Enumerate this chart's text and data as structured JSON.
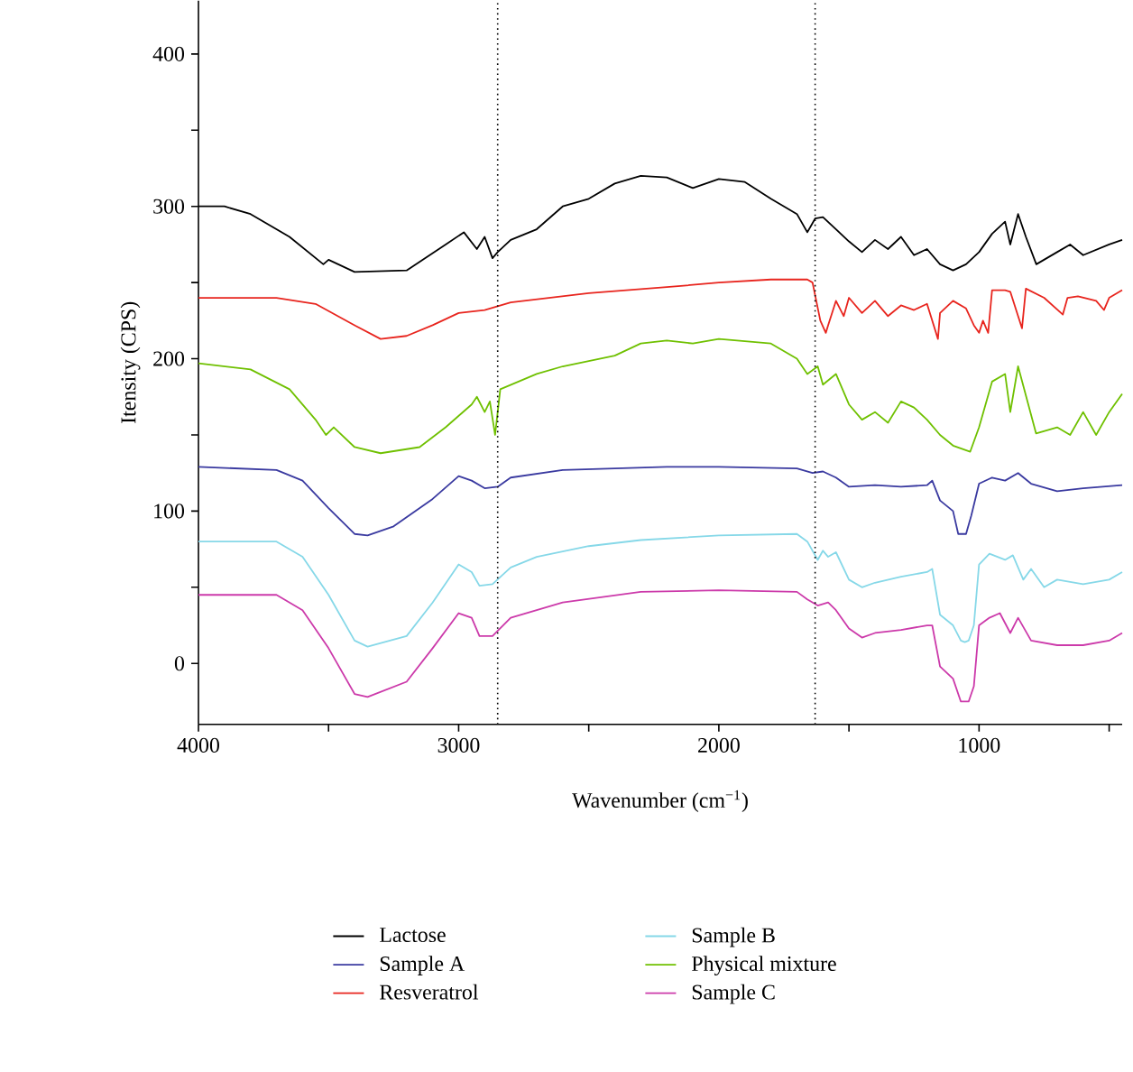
{
  "chart_data": {
    "type": "line",
    "xlabel": "Wavenumber (cm$^{−1}$)",
    "ylabel": "Itensity (CPS)",
    "xlim": [
      4000,
      450
    ],
    "ylim": [
      -40,
      435
    ],
    "xticks": [
      4000,
      {
        "value": 3500,
        "label": null
      },
      3000,
      {
        "value": 2500,
        "label": null
      },
      2000,
      {
        "value": 1500,
        "label": null
      },
      1000,
      {
        "value": 500,
        "label": null
      }
    ],
    "yticks": [
      0,
      {
        "value": 50,
        "label": null
      },
      100,
      {
        "value": 150,
        "label": null
      },
      200,
      {
        "value": 250,
        "label": null
      },
      300,
      {
        "value": 350,
        "label": null
      },
      400
    ],
    "legend": "bottom",
    "marker": "none",
    "line_style": "solid",
    "ref_lines": [
      {
        "axis": "x",
        "value": 2850,
        "color": "#000000",
        "line_style": "dotted"
      },
      {
        "axis": "x",
        "value": 1630,
        "color": "#000000",
        "line_style": "dotted"
      }
    ],
    "series": [
      {
        "name": "Lactose",
        "color": "#000000",
        "x": [
          4000,
          3900,
          3800,
          3650,
          3520,
          3500,
          3400,
          3200,
          3050,
          2980,
          2930,
          2900,
          2870,
          2850,
          2800,
          2700,
          2600,
          2500,
          2400,
          2300,
          2200,
          2100,
          2000,
          1900,
          1800,
          1700,
          1660,
          1630,
          1600,
          1500,
          1450,
          1400,
          1350,
          1300,
          1250,
          1200,
          1150,
          1100,
          1050,
          1000,
          950,
          900,
          880,
          850,
          820,
          780,
          700,
          650,
          600,
          500,
          450
        ],
        "values": [
          300,
          300,
          295,
          280,
          262,
          265,
          257,
          258,
          275,
          283,
          272,
          280,
          266,
          270,
          278,
          285,
          300,
          305,
          315,
          320,
          319,
          312,
          318,
          316,
          305,
          295,
          283,
          292,
          293,
          277,
          270,
          278,
          272,
          280,
          268,
          272,
          262,
          258,
          262,
          270,
          282,
          290,
          275,
          295,
          280,
          262,
          270,
          275,
          268,
          275,
          278
        ]
      },
      {
        "name": "Sample A",
        "color": "#3a3aa0",
        "x": [
          4000,
          3700,
          3600,
          3500,
          3400,
          3350,
          3250,
          3100,
          3000,
          2950,
          2900,
          2850,
          2800,
          2600,
          2200,
          2000,
          1700,
          1640,
          1600,
          1550,
          1500,
          1400,
          1300,
          1200,
          1180,
          1150,
          1100,
          1080,
          1050,
          1030,
          1000,
          950,
          900,
          850,
          800,
          700,
          600,
          450
        ],
        "values": [
          129,
          127,
          120,
          102,
          85,
          84,
          90,
          108,
          123,
          120,
          115,
          116,
          122,
          127,
          129,
          129,
          128,
          125,
          126,
          122,
          116,
          117,
          116,
          117,
          120,
          107,
          100,
          85,
          85,
          97,
          118,
          122,
          120,
          125,
          118,
          113,
          115,
          117
        ]
      },
      {
        "name": "Resveratrol",
        "color": "#e8251e",
        "x": [
          4000,
          3700,
          3550,
          3400,
          3300,
          3200,
          3100,
          3000,
          2900,
          2800,
          2500,
          2200,
          2000,
          1800,
          1660,
          1640,
          1610,
          1589,
          1580,
          1550,
          1520,
          1500,
          1450,
          1400,
          1350,
          1300,
          1250,
          1200,
          1158,
          1150,
          1100,
          1050,
          1020,
          1000,
          985,
          965,
          950,
          900,
          880,
          835,
          820,
          750,
          678,
          660,
          620,
          550,
          520,
          500,
          450
        ],
        "values": [
          240,
          240,
          236,
          222,
          213,
          215,
          222,
          230,
          232,
          237,
          243,
          247,
          250,
          252,
          252,
          250,
          225,
          217,
          222,
          238,
          228,
          240,
          230,
          238,
          228,
          235,
          232,
          236,
          213,
          230,
          238,
          233,
          222,
          217,
          225,
          217,
          245,
          245,
          244,
          220,
          246,
          240,
          229,
          240,
          241,
          238,
          232,
          240,
          245
        ]
      },
      {
        "name": "Sample B",
        "color": "#86d8e8",
        "x": [
          4000,
          3700,
          3600,
          3500,
          3400,
          3350,
          3200,
          3100,
          3000,
          2950,
          2920,
          2870,
          2800,
          2700,
          2500,
          2300,
          2000,
          1700,
          1660,
          1620,
          1600,
          1580,
          1550,
          1500,
          1450,
          1400,
          1300,
          1200,
          1180,
          1150,
          1100,
          1070,
          1055,
          1040,
          1020,
          1000,
          960,
          900,
          870,
          830,
          800,
          750,
          700,
          600,
          500,
          450
        ],
        "values": [
          80,
          80,
          70,
          45,
          15,
          11,
          18,
          40,
          65,
          60,
          51,
          52,
          63,
          70,
          77,
          81,
          84,
          85,
          80,
          68,
          74,
          70,
          73,
          55,
          50,
          53,
          57,
          60,
          62,
          32,
          25,
          15,
          14,
          15,
          25,
          65,
          72,
          68,
          71,
          55,
          62,
          50,
          55,
          52,
          55,
          60
        ]
      },
      {
        "name": "Physical mixture",
        "color": "#6fc000",
        "x": [
          4000,
          3800,
          3650,
          3550,
          3510,
          3480,
          3400,
          3300,
          3150,
          3050,
          2950,
          2930,
          2900,
          2880,
          2860,
          2840,
          2700,
          2600,
          2400,
          2300,
          2200,
          2100,
          2000,
          1800,
          1700,
          1660,
          1620,
          1600,
          1550,
          1500,
          1450,
          1400,
          1350,
          1300,
          1250,
          1200,
          1150,
          1100,
          1034,
          1000,
          950,
          900,
          880,
          850,
          781,
          700,
          650,
          600,
          550,
          500,
          450
        ],
        "values": [
          197,
          193,
          180,
          160,
          150,
          155,
          142,
          138,
          142,
          155,
          170,
          175,
          165,
          172,
          150,
          180,
          190,
          195,
          202,
          210,
          212,
          210,
          213,
          210,
          200,
          190,
          195,
          183,
          190,
          170,
          160,
          165,
          158,
          172,
          168,
          160,
          150,
          143,
          139,
          155,
          185,
          190,
          165,
          195,
          151,
          155,
          150,
          165,
          150,
          165,
          177
        ]
      },
      {
        "name": "Sample C",
        "color": "#cc3aaa",
        "x": [
          4000,
          3700,
          3600,
          3500,
          3400,
          3350,
          3200,
          3100,
          3000,
          2950,
          2920,
          2870,
          2800,
          2600,
          2300,
          2000,
          1700,
          1660,
          1620,
          1580,
          1550,
          1500,
          1450,
          1400,
          1300,
          1200,
          1180,
          1150,
          1100,
          1070,
          1040,
          1020,
          1000,
          960,
          920,
          880,
          850,
          800,
          700,
          600,
          500,
          450
        ],
        "values": [
          45,
          45,
          35,
          10,
          -20,
          -22,
          -12,
          10,
          33,
          30,
          18,
          18,
          30,
          40,
          47,
          48,
          47,
          42,
          38,
          40,
          35,
          23,
          17,
          20,
          22,
          25,
          25,
          -2,
          -10,
          -25,
          -25,
          -15,
          25,
          30,
          33,
          20,
          30,
          15,
          12,
          12,
          15,
          20
        ]
      }
    ]
  }
}
